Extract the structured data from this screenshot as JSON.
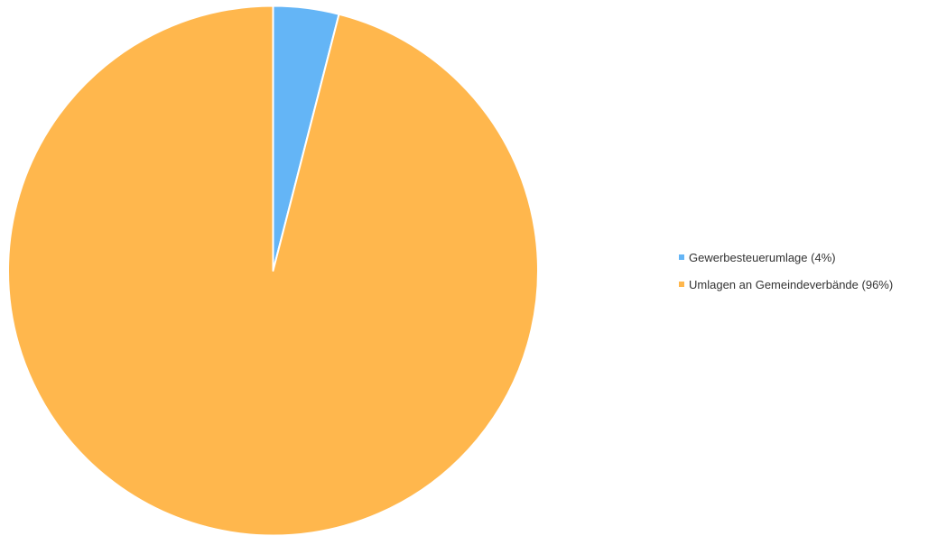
{
  "chart_data": {
    "type": "pie",
    "title": "",
    "start_angle_deg": 0,
    "direction": "clockwise",
    "legend_position": "right",
    "slices": [
      {
        "label": "Gewerbesteuerumlage (4%)",
        "percent": 4,
        "color": "#64b5f6"
      },
      {
        "label": "Umlagen an Gemeindeverbände (96%)",
        "percent": 96,
        "color": "#ffb74d"
      }
    ]
  }
}
